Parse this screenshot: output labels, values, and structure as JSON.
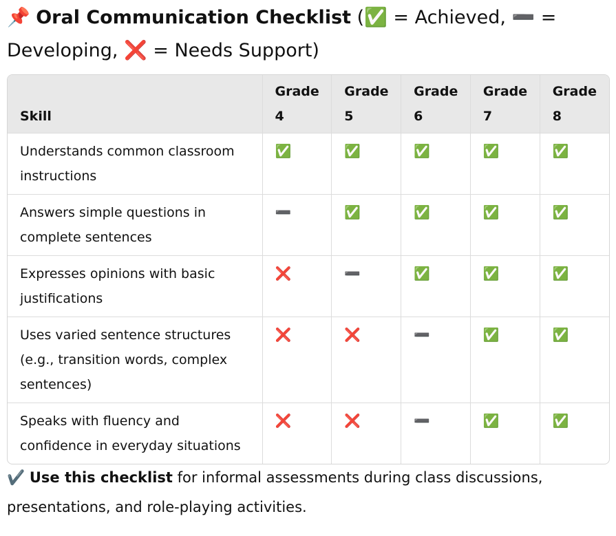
{
  "header": {
    "icon": "📌",
    "title": "Oral Communication Checklist",
    "legend": "(✅ = Achieved, ➖ = Developing, ❌ = Needs Support)"
  },
  "table": {
    "columns": [
      "Skill",
      "Grade 4",
      "Grade 5",
      "Grade 6",
      "Grade 7",
      "Grade 8"
    ],
    "rows": [
      [
        "Understands common classroom instructions",
        "✅",
        "✅",
        "✅",
        "✅",
        "✅"
      ],
      [
        "Answers simple questions in complete sentences",
        "➖",
        "✅",
        "✅",
        "✅",
        "✅"
      ],
      [
        "Expresses opinions with basic justifications",
        "❌",
        "➖",
        "✅",
        "✅",
        "✅"
      ],
      [
        "Uses varied sentence structures (e.g., transition words, complex sentences)",
        "❌",
        "❌",
        "➖",
        "✅",
        "✅"
      ],
      [
        "Speaks with fluency and confidence in everyday situations",
        "❌",
        "❌",
        "➖",
        "✅",
        "✅"
      ]
    ]
  },
  "footer": {
    "icon": "✔️",
    "lead": "Use this checklist",
    "text": "for informal assessments during class discussions, presentations, and role-playing activities."
  }
}
